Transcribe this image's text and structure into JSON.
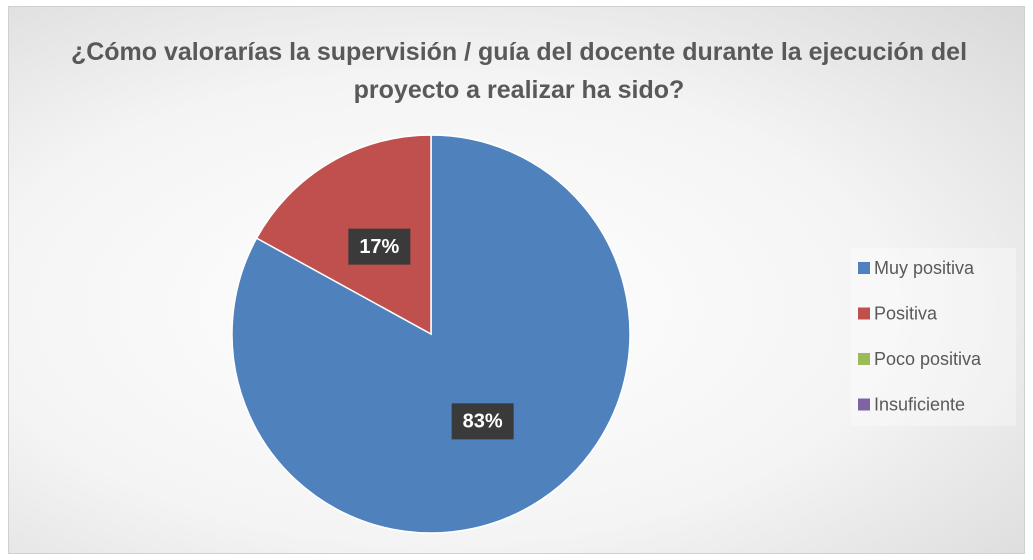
{
  "chart_data": {
    "type": "pie",
    "title": "¿Cómo valorarías la supervisión / guía del docente durante la ejecución del proyecto a realizar ha sido?",
    "categories": [
      "Muy positiva",
      "Positiva",
      "Poco positiva",
      "Insuficiente"
    ],
    "values": [
      83,
      17,
      0,
      0
    ],
    "value_labels": [
      "83%",
      "17%",
      null,
      null
    ],
    "colors": [
      "#4f81bd",
      "#c0504d",
      "#9bbb59",
      "#8064a2"
    ],
    "legend": "right"
  }
}
